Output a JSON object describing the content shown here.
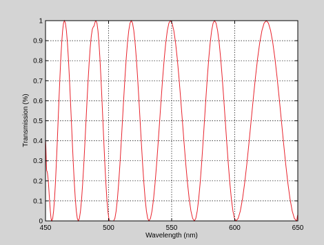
{
  "chart_data": {
    "type": "line",
    "title": "",
    "xlabel": "Wavelength (nm)",
    "ylabel": "Transmission (%)",
    "xlim": [
      450,
      650
    ],
    "ylim": [
      0,
      1
    ],
    "x_ticks": [
      450,
      500,
      550,
      600,
      650
    ],
    "y_ticks": [
      0,
      0.1,
      0.2,
      0.3,
      0.4,
      0.5,
      0.6,
      0.7,
      0.8,
      0.9,
      1
    ],
    "x_tick_labels": [
      "450",
      "500",
      "550",
      "600",
      "650"
    ],
    "y_tick_labels": [
      "0",
      "0.1",
      "0.2",
      "0.3",
      "0.4",
      "0.5",
      "0.6",
      "0.7",
      "0.8",
      "0.9",
      "1"
    ],
    "grid": true,
    "series": [
      {
        "color": "#e8202a",
        "x": [
          450,
          451,
          455,
          465,
          476,
          488,
          490,
          501,
          504,
          518,
          532,
          549,
          568,
          584,
          601,
          625,
          649,
          650
        ],
        "y": [
          0.4,
          0.25,
          0.0,
          1.0,
          0.0,
          0.97,
          1.0,
          0.0,
          0.0,
          1.0,
          0.0,
          1.0,
          0.0,
          1.0,
          0.0,
          1.0,
          0.0,
          0.03
        ]
      },
      {
        "color": "#20c020",
        "x": [
          450,
          650
        ],
        "y": [
          1.0,
          1.0
        ]
      }
    ]
  }
}
